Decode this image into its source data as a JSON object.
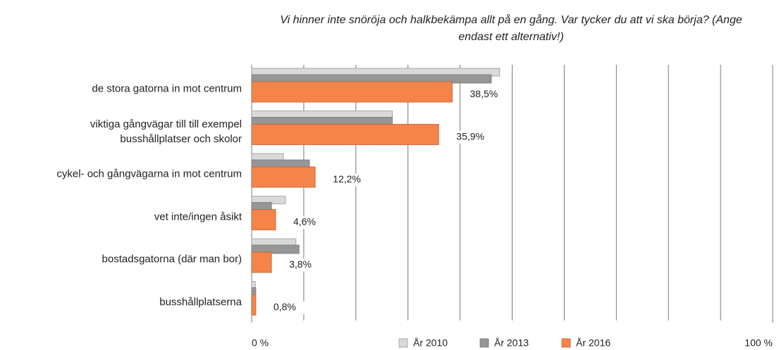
{
  "chart_data": {
    "type": "bar",
    "orientation": "horizontal",
    "title": "Vi hinner inte snöröja och halkbekämpa allt på en gång. Var tycker du att vi ska börja? (Ange endast ett alternativ!)",
    "categories": [
      "de stora gatorna in mot centrum",
      "viktiga gångvägar till till exempel\nbusshållplatser och skolor",
      "cykel- och gångvägarna in mot centrum",
      "vet inte/ingen åsikt",
      "bostadsgatorna (där man bor)",
      "busshållplatserna"
    ],
    "series": [
      {
        "name": "År 2010",
        "color": "#d9d9d9",
        "values": [
          47.6,
          27,
          6.1,
          6.5,
          8.5,
          0.7
        ]
      },
      {
        "name": "År 2013",
        "color": "#969696",
        "values": [
          46,
          27,
          11.1,
          3.8,
          9.1,
          0.8
        ]
      },
      {
        "name": "År 2016",
        "color": "#f4844a",
        "values": [
          38.5,
          35.9,
          12.2,
          4.6,
          3.8,
          0.8
        ],
        "value_labels": [
          "38,5%",
          "35,9%",
          "12,2%",
          "4,6%",
          "3,8%",
          "0,8%"
        ]
      }
    ],
    "xlim": [
      0,
      100
    ],
    "xticks": [
      {
        "value": 0,
        "label": "0 %"
      },
      {
        "value": 100,
        "label": "100 %"
      }
    ],
    "grid": true,
    "legend": "bottom"
  }
}
